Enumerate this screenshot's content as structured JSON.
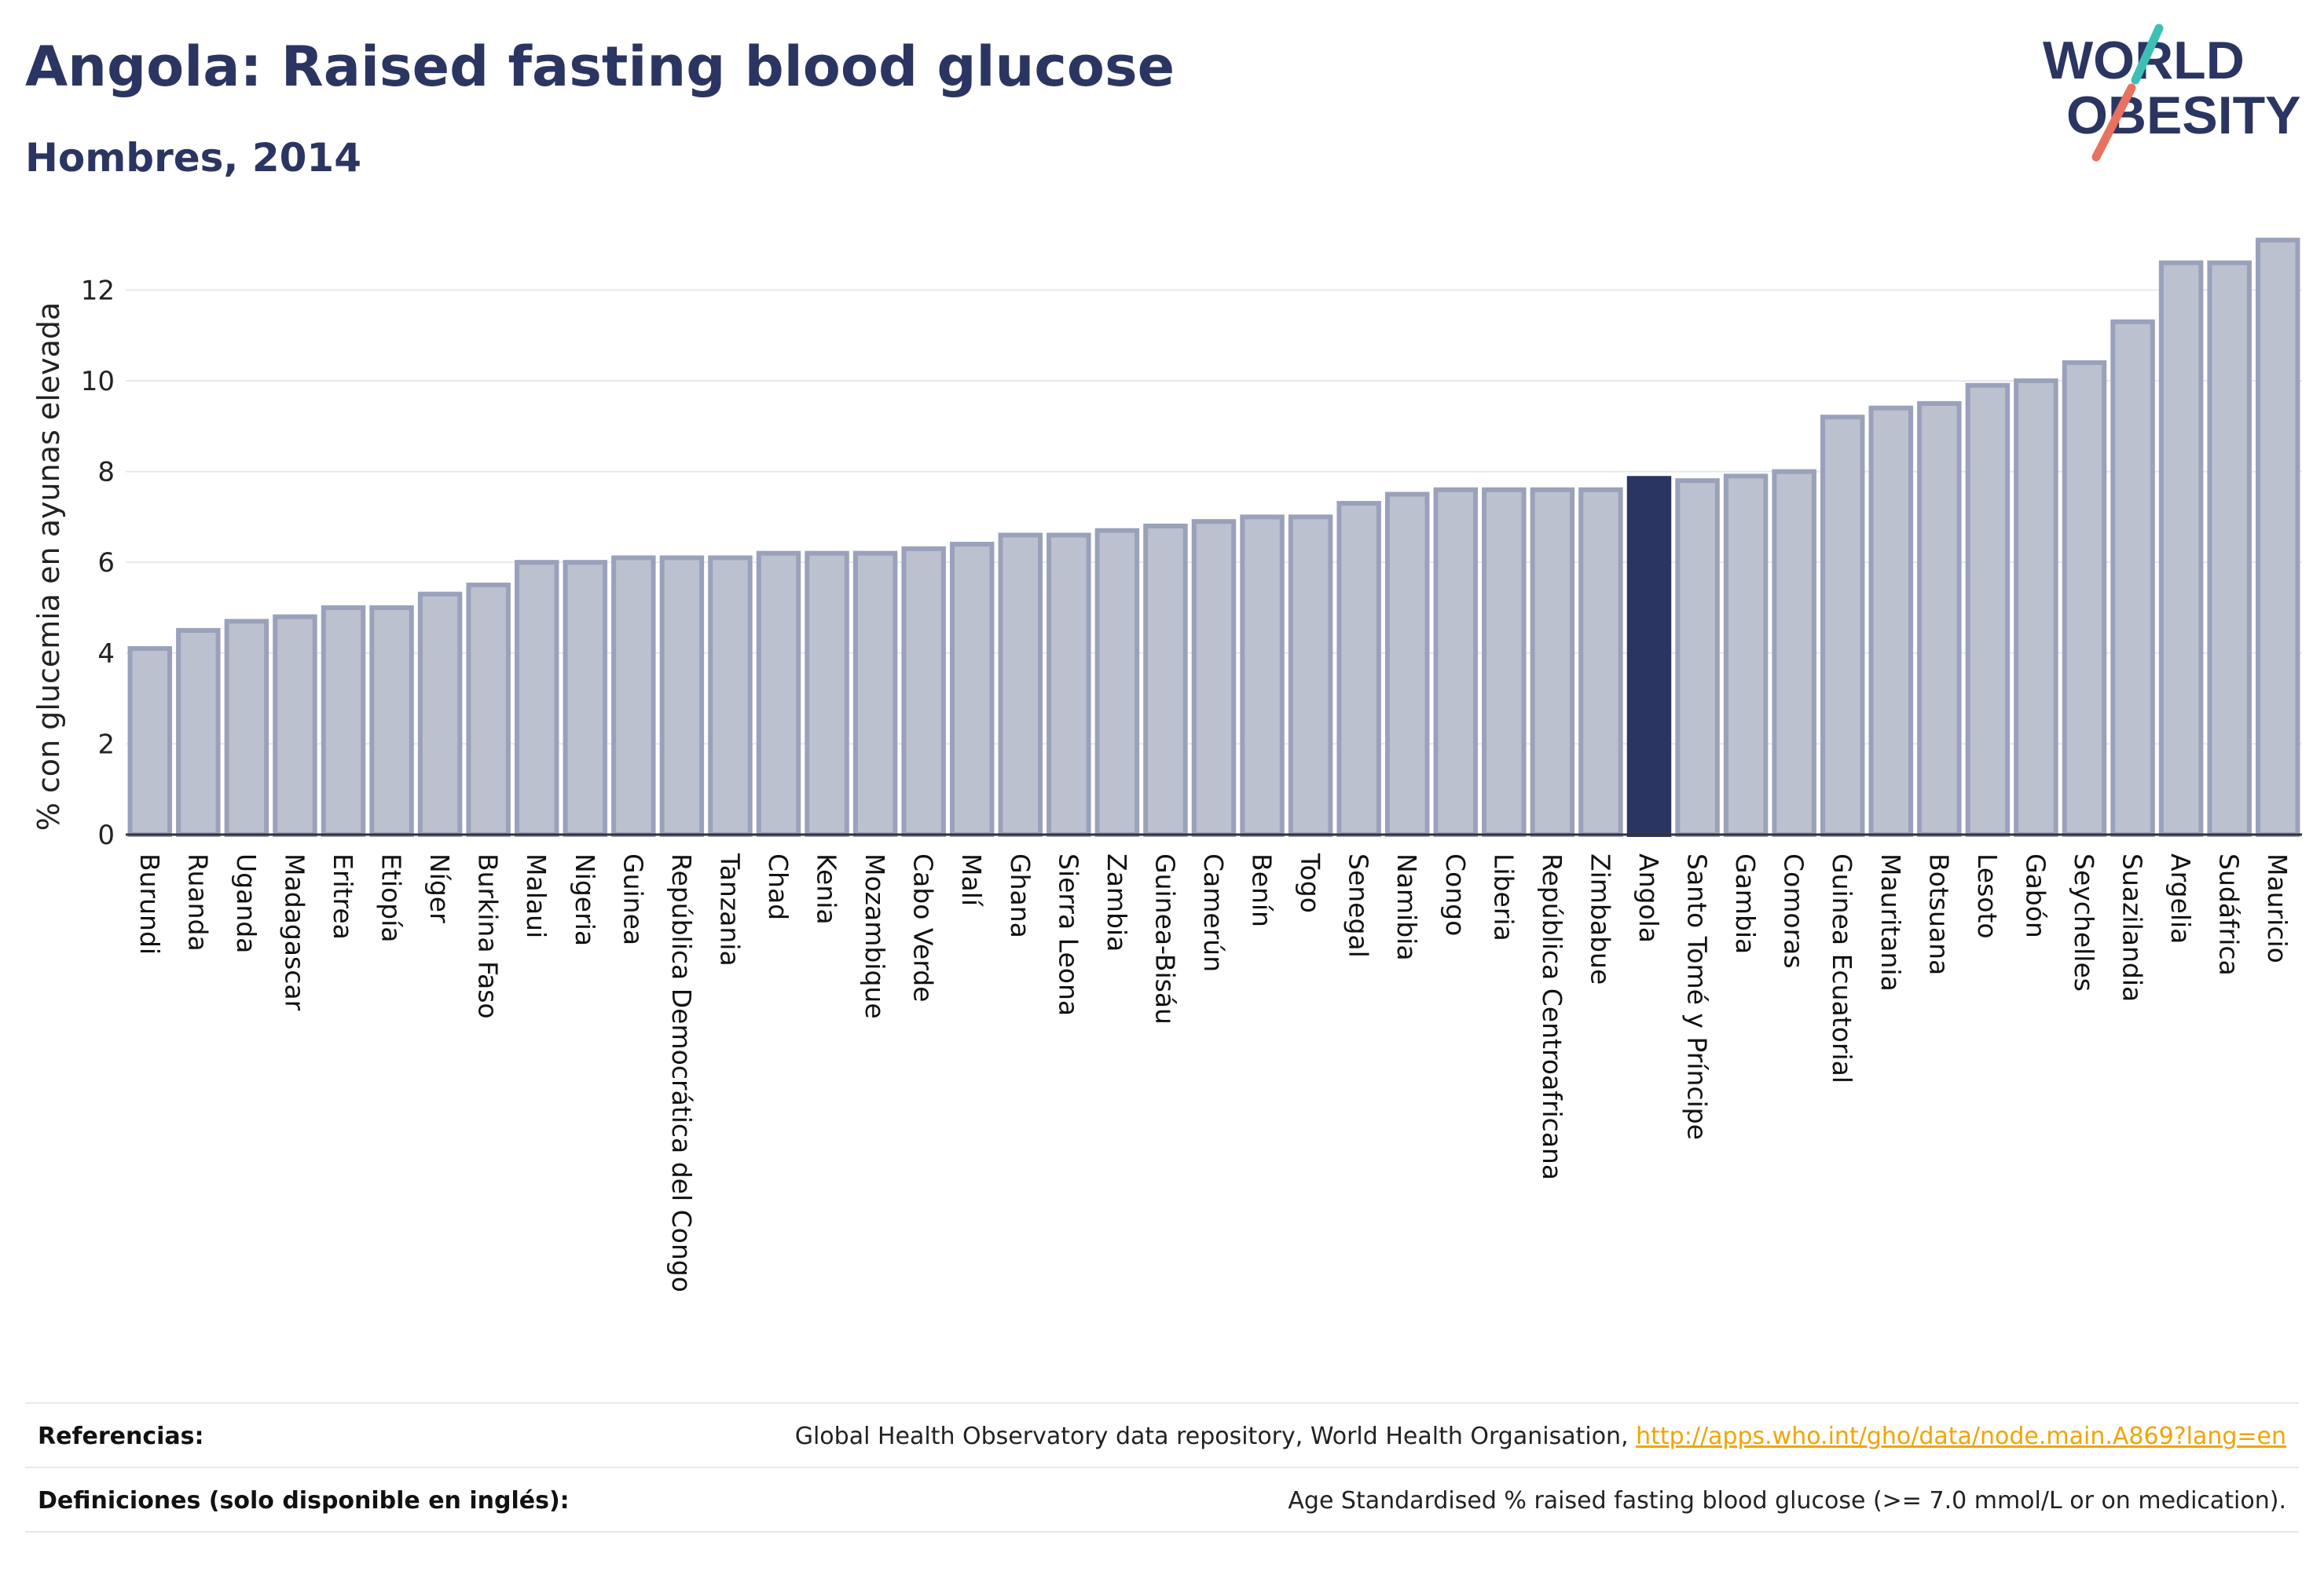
{
  "title": "Angola: Raised fasting blood glucose",
  "subtitle": "Hombres, 2014",
  "logo": {
    "line1": "WORLD",
    "line2": "OBESITY"
  },
  "colors": {
    "bar_fill": "#bcc1cf",
    "bar_stroke": "#9aa1ba",
    "highlight": "#2b3562",
    "title": "#2b3562",
    "logo_teal": "#3ebfb5",
    "logo_coral": "#e8715f",
    "link": "#f0a500"
  },
  "chart_data": {
    "type": "bar",
    "ylabel": "% con glucemia en ayunas elevada",
    "xlabel": "",
    "ylim": [
      0,
      13.2
    ],
    "yticks": [
      0,
      2,
      4,
      6,
      8,
      10,
      12
    ],
    "grid": true,
    "highlight_category": "Angola",
    "categories": [
      "Burundi",
      "Ruanda",
      "Uganda",
      "Madagascar",
      "Eritrea",
      "Etiopía",
      "Níger",
      "Burkina Faso",
      "Malaui",
      "Nigeria",
      "Guinea",
      "República Democrática del Congo",
      "Tanzania",
      "Chad",
      "Kenia",
      "Mozambique",
      "Cabo Verde",
      "Malí",
      "Ghana",
      "Sierra Leona",
      "Zambia",
      "Guinea-Bisáu",
      "Camerún",
      "Benín",
      "Togo",
      "Senegal",
      "Namibia",
      "Congo",
      "Liberia",
      "República Centroafricana",
      "Zimbabue",
      "Angola",
      "Santo Tomé y Príncipe",
      "Gambia",
      "Comoras",
      "Guinea Ecuatorial",
      "Mauritania",
      "Botsuana",
      "Lesoto",
      "Gabón",
      "Seychelles",
      "Suazilandia",
      "Argelia",
      "Sudáfrica",
      "Mauricio"
    ],
    "values": [
      4.1,
      4.5,
      4.7,
      4.8,
      5.0,
      5.0,
      5.3,
      5.5,
      6.0,
      6.0,
      6.1,
      6.1,
      6.1,
      6.2,
      6.2,
      6.2,
      6.3,
      6.4,
      6.6,
      6.6,
      6.7,
      6.8,
      6.9,
      7.0,
      7.0,
      7.3,
      7.5,
      7.6,
      7.6,
      7.6,
      7.6,
      7.85,
      7.8,
      7.9,
      8.0,
      9.2,
      9.4,
      9.5,
      9.9,
      10.0,
      10.4,
      11.3,
      12.6,
      12.6,
      13.1
    ]
  },
  "footer": {
    "references_label": "Referencias:",
    "references_text": "Global Health Observatory data repository, World Health Organisation, ",
    "references_link": "http://apps.who.int/gho/data/node.main.A869?lang=en",
    "definitions_label": "Definiciones (solo disponible en inglés):",
    "definitions_text": "Age Standardised % raised fasting blood glucose (>= 7.0 mmol/L or on medication)."
  }
}
